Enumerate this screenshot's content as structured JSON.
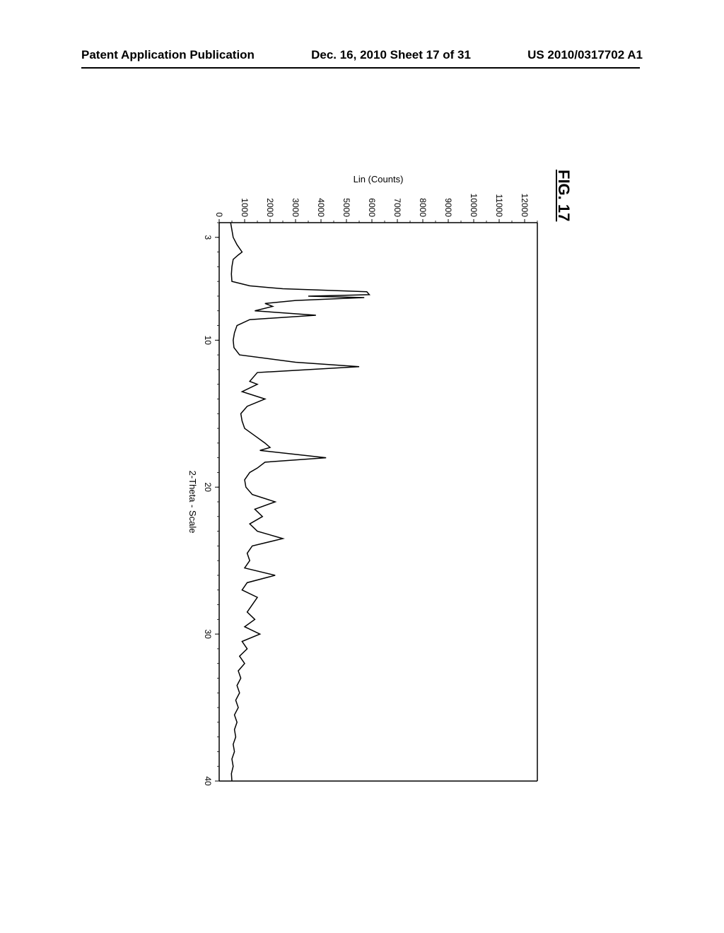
{
  "header": {
    "left": "Patent Application Publication",
    "center": "Dec. 16, 2010  Sheet 17 of 31",
    "right": "US 2010/0317702 A1"
  },
  "figure": {
    "title": "FIG. 17",
    "chart": {
      "type": "line",
      "xlabel": "2-Theta - Scale",
      "ylabel": "Lin (Counts)",
      "xlim": [
        2,
        40
      ],
      "ylim": [
        0,
        12500
      ],
      "xtick_labels": [
        "3",
        "10",
        "20",
        "30",
        "40"
      ],
      "xtick_positions": [
        3,
        10,
        20,
        30,
        40
      ],
      "ytick_labels": [
        "0",
        "1000",
        "2000",
        "3000",
        "4000",
        "5000",
        "6000",
        "7000",
        "8000",
        "9000",
        "10000",
        "11000",
        "12000"
      ],
      "ytick_positions": [
        0,
        1000,
        2000,
        3000,
        4000,
        5000,
        6000,
        7000,
        8000,
        9000,
        10000,
        11000,
        12000
      ],
      "label_fontsize": 13,
      "tick_fontsize": 12,
      "line_color": "#000000",
      "background_color": "#ffffff",
      "axis_color": "#000000",
      "line_width": 1.5,
      "data": [
        [
          2,
          450
        ],
        [
          2.5,
          500
        ],
        [
          3,
          550
        ],
        [
          3.5,
          700
        ],
        [
          4,
          900
        ],
        [
          4.2,
          750
        ],
        [
          4.5,
          550
        ],
        [
          5,
          500
        ],
        [
          5.5,
          480
        ],
        [
          6,
          500
        ],
        [
          6.3,
          1200
        ],
        [
          6.5,
          2500
        ],
        [
          6.7,
          5800
        ],
        [
          6.9,
          5900
        ],
        [
          7.0,
          3500
        ],
        [
          7.1,
          5700
        ],
        [
          7.3,
          3000
        ],
        [
          7.5,
          1800
        ],
        [
          7.7,
          2100
        ],
        [
          8,
          1400
        ],
        [
          8.3,
          3800
        ],
        [
          8.6,
          1200
        ],
        [
          9,
          700
        ],
        [
          9.5,
          600
        ],
        [
          10,
          550
        ],
        [
          10.5,
          580
        ],
        [
          11,
          800
        ],
        [
          11.5,
          3000
        ],
        [
          11.8,
          5500
        ],
        [
          12.2,
          1500
        ],
        [
          12.8,
          1200
        ],
        [
          13,
          1500
        ],
        [
          13.5,
          900
        ],
        [
          14,
          1800
        ],
        [
          14.5,
          1100
        ],
        [
          15,
          850
        ],
        [
          15.5,
          900
        ],
        [
          16,
          1000
        ],
        [
          16.5,
          1400
        ],
        [
          17,
          1800
        ],
        [
          17.3,
          2000
        ],
        [
          17.5,
          1600
        ],
        [
          18,
          4200
        ],
        [
          18.3,
          1800
        ],
        [
          18.7,
          1500
        ],
        [
          19,
          1200
        ],
        [
          19.5,
          1000
        ],
        [
          20,
          1050
        ],
        [
          20.5,
          1300
        ],
        [
          21,
          2200
        ],
        [
          21.5,
          1400
        ],
        [
          22,
          1700
        ],
        [
          22.5,
          1200
        ],
        [
          23,
          1500
        ],
        [
          23.5,
          2500
        ],
        [
          24,
          1300
        ],
        [
          24.5,
          1100
        ],
        [
          25,
          1200
        ],
        [
          25.5,
          1000
        ],
        [
          26,
          2200
        ],
        [
          26.5,
          1100
        ],
        [
          27,
          900
        ],
        [
          27.5,
          1500
        ],
        [
          28,
          1300
        ],
        [
          28.5,
          1100
        ],
        [
          29,
          1400
        ],
        [
          29.5,
          1000
        ],
        [
          30,
          1600
        ],
        [
          30.5,
          900
        ],
        [
          31,
          1100
        ],
        [
          31.5,
          800
        ],
        [
          32,
          1000
        ],
        [
          32.5,
          750
        ],
        [
          33,
          850
        ],
        [
          33.5,
          700
        ],
        [
          34,
          800
        ],
        [
          34.5,
          650
        ],
        [
          35,
          750
        ],
        [
          35.5,
          600
        ],
        [
          36,
          700
        ],
        [
          36.5,
          600
        ],
        [
          37,
          650
        ],
        [
          37.5,
          550
        ],
        [
          38,
          600
        ],
        [
          38.5,
          500
        ],
        [
          39,
          550
        ],
        [
          39.5,
          480
        ],
        [
          40,
          500
        ]
      ]
    }
  }
}
